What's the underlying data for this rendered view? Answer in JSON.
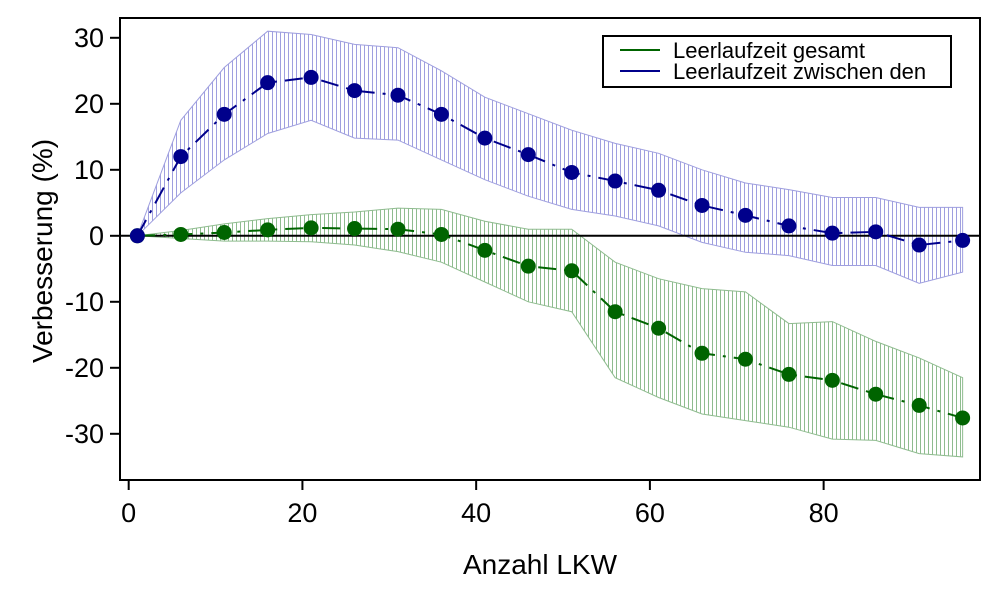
{
  "chart_data": {
    "type": "line",
    "xlabel": "Anzahl LKW",
    "ylabel": "Verbesserung (%)",
    "xlim": [
      -1,
      98
    ],
    "ylim": [
      -37,
      33
    ],
    "x_ticks": [
      0,
      20,
      40,
      60,
      80
    ],
    "y_ticks": [
      30,
      20,
      10,
      0,
      -10,
      -20,
      -30
    ],
    "x_tick_labels": [
      "0",
      "20",
      "40",
      "60",
      "80"
    ],
    "y_tick_labels": [
      "30",
      "20",
      "10",
      "0",
      "-10",
      "-20",
      "-30"
    ],
    "zero_line": true,
    "grid": false,
    "legend_position": "top-right",
    "x": [
      1,
      6,
      11,
      16,
      21,
      26,
      31,
      36,
      41,
      46,
      51,
      56,
      61,
      66,
      71,
      76,
      81,
      86,
      91,
      96
    ],
    "series": [
      {
        "name": "Leerlaufzeit gesamt",
        "line_color": "#006400",
        "marker_color": "#006400",
        "band_color": "#8fbc8f",
        "values": [
          0,
          0.2,
          0.5,
          0.9,
          1.2,
          1.1,
          1.0,
          0.2,
          -2.2,
          -4.6,
          -5.3,
          -11.5,
          -14.0,
          -17.8,
          -18.7,
          -21.0,
          -21.9,
          -24.0,
          -25.7,
          -27.6
        ],
        "upper": [
          0,
          0.8,
          1.8,
          2.6,
          3.2,
          3.6,
          4.2,
          4.0,
          2.2,
          1.0,
          1.0,
          -4.0,
          -6.5,
          -8.0,
          -8.5,
          -13.3,
          -13.0,
          -16.0,
          -18.5,
          -21.5
        ],
        "lower": [
          0,
          -0.4,
          -0.8,
          -0.8,
          -0.9,
          -1.4,
          -2.4,
          -4.0,
          -7.0,
          -10.0,
          -11.5,
          -21.5,
          -24.5,
          -27.0,
          -28.0,
          -29.0,
          -30.8,
          -31.0,
          -33.0,
          -33.5
        ]
      },
      {
        "name": "Leerlaufzeit zwischen den",
        "line_color": "#00008b",
        "marker_color": "#00008b",
        "band_color": "#9f9fdf",
        "values": [
          0,
          12.0,
          18.4,
          23.2,
          24.0,
          22.0,
          21.3,
          18.4,
          14.8,
          12.3,
          9.6,
          8.3,
          6.9,
          4.6,
          3.1,
          1.5,
          0.4,
          0.6,
          -1.4,
          -0.7
        ],
        "upper": [
          0,
          17.5,
          25.5,
          31.0,
          30.5,
          29.0,
          28.5,
          25.0,
          21.0,
          18.5,
          16.0,
          14.0,
          12.5,
          10.0,
          8.0,
          7.0,
          5.8,
          5.8,
          4.3,
          4.3
        ],
        "lower": [
          0,
          6.5,
          11.5,
          15.5,
          17.5,
          14.8,
          14.5,
          11.5,
          8.5,
          6.0,
          4.0,
          3.0,
          1.5,
          -1.0,
          -2.5,
          -3.0,
          -4.5,
          -4.5,
          -7.2,
          -5.5
        ]
      }
    ]
  }
}
